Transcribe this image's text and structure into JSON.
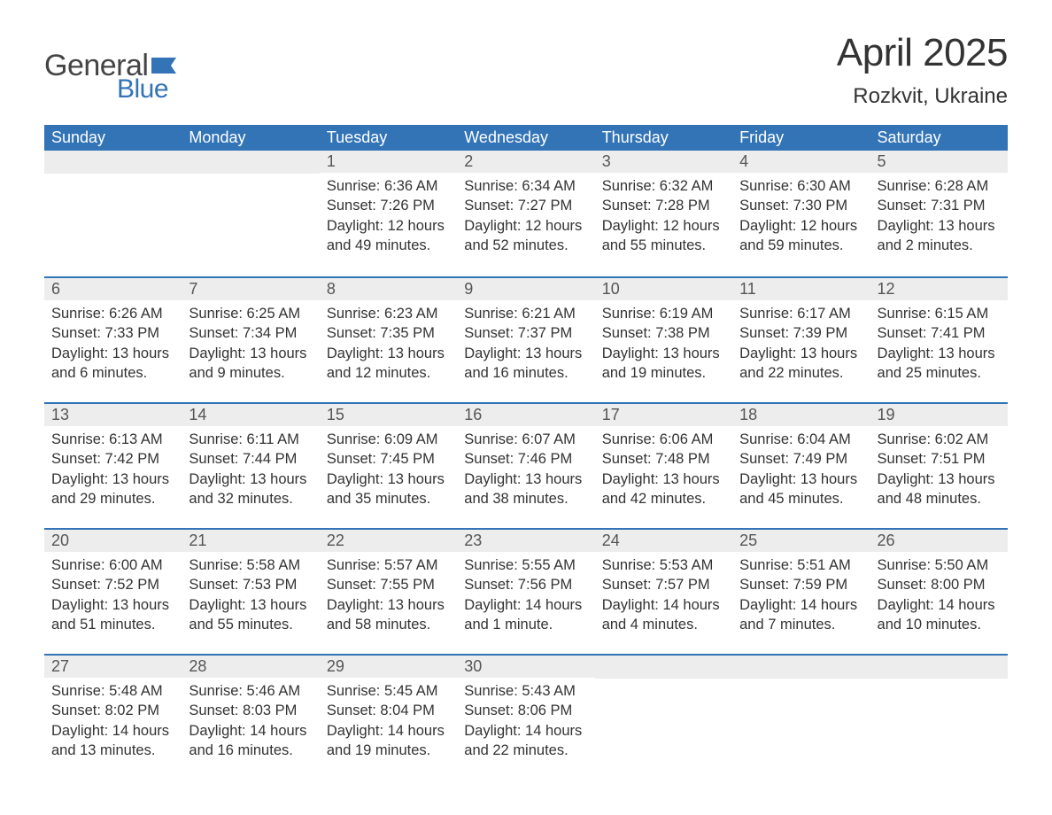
{
  "brand": {
    "text_general": "General",
    "text_blue": "Blue",
    "flag_color": "#3374b7",
    "general_color": "#444444",
    "blue_color": "#3374b7"
  },
  "title": "April 2025",
  "location": "Rozkvit, Ukraine",
  "colors": {
    "header_bg": "#3374b7",
    "header_text": "#ffffff",
    "daynum_bg": "#ededed",
    "daynum_text": "#555555",
    "row_border": "#3374b7",
    "body_text": "#333333",
    "page_bg": "#ffffff"
  },
  "typography": {
    "title_fontsize": 44,
    "location_fontsize": 24,
    "header_fontsize": 18,
    "daynum_fontsize": 18,
    "detail_fontsize": 16.5,
    "logo_fontsize": 34
  },
  "day_headers": [
    "Sunday",
    "Monday",
    "Tuesday",
    "Wednesday",
    "Thursday",
    "Friday",
    "Saturday"
  ],
  "weeks": [
    [
      {
        "blank": true
      },
      {
        "blank": true
      },
      {
        "day": "1",
        "sunrise": "Sunrise: 6:36 AM",
        "sunset": "Sunset: 7:26 PM",
        "daylight": "Daylight: 12 hours and 49 minutes."
      },
      {
        "day": "2",
        "sunrise": "Sunrise: 6:34 AM",
        "sunset": "Sunset: 7:27 PM",
        "daylight": "Daylight: 12 hours and 52 minutes."
      },
      {
        "day": "3",
        "sunrise": "Sunrise: 6:32 AM",
        "sunset": "Sunset: 7:28 PM",
        "daylight": "Daylight: 12 hours and 55 minutes."
      },
      {
        "day": "4",
        "sunrise": "Sunrise: 6:30 AM",
        "sunset": "Sunset: 7:30 PM",
        "daylight": "Daylight: 12 hours and 59 minutes."
      },
      {
        "day": "5",
        "sunrise": "Sunrise: 6:28 AM",
        "sunset": "Sunset: 7:31 PM",
        "daylight": "Daylight: 13 hours and 2 minutes."
      }
    ],
    [
      {
        "day": "6",
        "sunrise": "Sunrise: 6:26 AM",
        "sunset": "Sunset: 7:33 PM",
        "daylight": "Daylight: 13 hours and 6 minutes."
      },
      {
        "day": "7",
        "sunrise": "Sunrise: 6:25 AM",
        "sunset": "Sunset: 7:34 PM",
        "daylight": "Daylight: 13 hours and 9 minutes."
      },
      {
        "day": "8",
        "sunrise": "Sunrise: 6:23 AM",
        "sunset": "Sunset: 7:35 PM",
        "daylight": "Daylight: 13 hours and 12 minutes."
      },
      {
        "day": "9",
        "sunrise": "Sunrise: 6:21 AM",
        "sunset": "Sunset: 7:37 PM",
        "daylight": "Daylight: 13 hours and 16 minutes."
      },
      {
        "day": "10",
        "sunrise": "Sunrise: 6:19 AM",
        "sunset": "Sunset: 7:38 PM",
        "daylight": "Daylight: 13 hours and 19 minutes."
      },
      {
        "day": "11",
        "sunrise": "Sunrise: 6:17 AM",
        "sunset": "Sunset: 7:39 PM",
        "daylight": "Daylight: 13 hours and 22 minutes."
      },
      {
        "day": "12",
        "sunrise": "Sunrise: 6:15 AM",
        "sunset": "Sunset: 7:41 PM",
        "daylight": "Daylight: 13 hours and 25 minutes."
      }
    ],
    [
      {
        "day": "13",
        "sunrise": "Sunrise: 6:13 AM",
        "sunset": "Sunset: 7:42 PM",
        "daylight": "Daylight: 13 hours and 29 minutes."
      },
      {
        "day": "14",
        "sunrise": "Sunrise: 6:11 AM",
        "sunset": "Sunset: 7:44 PM",
        "daylight": "Daylight: 13 hours and 32 minutes."
      },
      {
        "day": "15",
        "sunrise": "Sunrise: 6:09 AM",
        "sunset": "Sunset: 7:45 PM",
        "daylight": "Daylight: 13 hours and 35 minutes."
      },
      {
        "day": "16",
        "sunrise": "Sunrise: 6:07 AM",
        "sunset": "Sunset: 7:46 PM",
        "daylight": "Daylight: 13 hours and 38 minutes."
      },
      {
        "day": "17",
        "sunrise": "Sunrise: 6:06 AM",
        "sunset": "Sunset: 7:48 PM",
        "daylight": "Daylight: 13 hours and 42 minutes."
      },
      {
        "day": "18",
        "sunrise": "Sunrise: 6:04 AM",
        "sunset": "Sunset: 7:49 PM",
        "daylight": "Daylight: 13 hours and 45 minutes."
      },
      {
        "day": "19",
        "sunrise": "Sunrise: 6:02 AM",
        "sunset": "Sunset: 7:51 PM",
        "daylight": "Daylight: 13 hours and 48 minutes."
      }
    ],
    [
      {
        "day": "20",
        "sunrise": "Sunrise: 6:00 AM",
        "sunset": "Sunset: 7:52 PM",
        "daylight": "Daylight: 13 hours and 51 minutes."
      },
      {
        "day": "21",
        "sunrise": "Sunrise: 5:58 AM",
        "sunset": "Sunset: 7:53 PM",
        "daylight": "Daylight: 13 hours and 55 minutes."
      },
      {
        "day": "22",
        "sunrise": "Sunrise: 5:57 AM",
        "sunset": "Sunset: 7:55 PM",
        "daylight": "Daylight: 13 hours and 58 minutes."
      },
      {
        "day": "23",
        "sunrise": "Sunrise: 5:55 AM",
        "sunset": "Sunset: 7:56 PM",
        "daylight": "Daylight: 14 hours and 1 minute."
      },
      {
        "day": "24",
        "sunrise": "Sunrise: 5:53 AM",
        "sunset": "Sunset: 7:57 PM",
        "daylight": "Daylight: 14 hours and 4 minutes."
      },
      {
        "day": "25",
        "sunrise": "Sunrise: 5:51 AM",
        "sunset": "Sunset: 7:59 PM",
        "daylight": "Daylight: 14 hours and 7 minutes."
      },
      {
        "day": "26",
        "sunrise": "Sunrise: 5:50 AM",
        "sunset": "Sunset: 8:00 PM",
        "daylight": "Daylight: 14 hours and 10 minutes."
      }
    ],
    [
      {
        "day": "27",
        "sunrise": "Sunrise: 5:48 AM",
        "sunset": "Sunset: 8:02 PM",
        "daylight": "Daylight: 14 hours and 13 minutes."
      },
      {
        "day": "28",
        "sunrise": "Sunrise: 5:46 AM",
        "sunset": "Sunset: 8:03 PM",
        "daylight": "Daylight: 14 hours and 16 minutes."
      },
      {
        "day": "29",
        "sunrise": "Sunrise: 5:45 AM",
        "sunset": "Sunset: 8:04 PM",
        "daylight": "Daylight: 14 hours and 19 minutes."
      },
      {
        "day": "30",
        "sunrise": "Sunrise: 5:43 AM",
        "sunset": "Sunset: 8:06 PM",
        "daylight": "Daylight: 14 hours and 22 minutes."
      },
      {
        "blank": true
      },
      {
        "blank": true
      },
      {
        "blank": true
      }
    ]
  ]
}
